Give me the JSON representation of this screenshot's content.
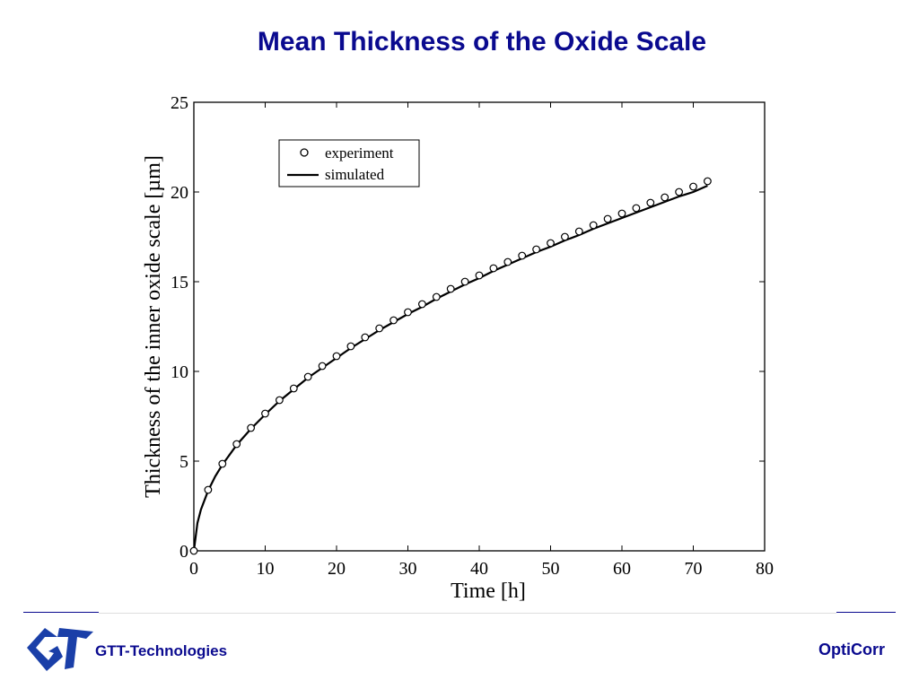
{
  "slide": {
    "title": "Mean Thickness of the Oxide Scale",
    "company": "GTT-Technologies",
    "product": "OptiCorr",
    "title_color": "#0a0a8f",
    "logo_color": "#1a3fa8"
  },
  "chart_data": {
    "type": "scatter",
    "title": "",
    "xlabel": "Time [h]",
    "ylabel": "Thickness of the inner oxide scale [µm]",
    "xlim": [
      0,
      80
    ],
    "ylim": [
      0,
      25
    ],
    "xticks": [
      0,
      10,
      20,
      30,
      40,
      50,
      60,
      70,
      80
    ],
    "yticks": [
      0,
      5,
      10,
      15,
      20,
      25
    ],
    "grid": false,
    "legend": {
      "position": "top-left",
      "entries": [
        "experiment",
        "simulated"
      ]
    },
    "series": [
      {
        "name": "experiment",
        "kind": "scatter",
        "marker": "open-circle",
        "x": [
          0,
          2,
          4,
          6,
          8,
          10,
          12,
          14,
          16,
          18,
          20,
          22,
          24,
          26,
          28,
          30,
          32,
          34,
          36,
          38,
          40,
          42,
          44,
          46,
          48,
          50,
          52,
          54,
          56,
          58,
          60,
          62,
          64,
          66,
          68,
          70,
          72
        ],
        "y": [
          0,
          3.4,
          4.85,
          5.95,
          6.85,
          7.65,
          8.4,
          9.05,
          9.7,
          10.3,
          10.85,
          11.4,
          11.9,
          12.4,
          12.85,
          13.3,
          13.75,
          14.15,
          14.6,
          15.0,
          15.35,
          15.75,
          16.1,
          16.45,
          16.8,
          17.15,
          17.5,
          17.8,
          18.15,
          18.5,
          18.8,
          19.1,
          19.4,
          19.7,
          20.0,
          20.3,
          20.6
        ]
      },
      {
        "name": "simulated",
        "kind": "line",
        "x": [
          0,
          0.5,
          1,
          2,
          3,
          4,
          6,
          8,
          10,
          12,
          14,
          16,
          18,
          20,
          22,
          24,
          26,
          28,
          30,
          32,
          34,
          36,
          38,
          40,
          42,
          44,
          46,
          48,
          50,
          52,
          54,
          56,
          58,
          60,
          62,
          64,
          66,
          68,
          70,
          72
        ],
        "y": [
          0,
          1.55,
          2.3,
          3.35,
          4.15,
          4.8,
          5.9,
          6.8,
          7.6,
          8.35,
          9.0,
          9.65,
          10.2,
          10.75,
          11.3,
          11.8,
          12.3,
          12.75,
          13.2,
          13.6,
          14.05,
          14.45,
          14.85,
          15.2,
          15.6,
          15.95,
          16.3,
          16.65,
          16.95,
          17.3,
          17.6,
          17.95,
          18.25,
          18.55,
          18.85,
          19.15,
          19.45,
          19.75,
          20.0,
          20.35
        ]
      }
    ]
  }
}
